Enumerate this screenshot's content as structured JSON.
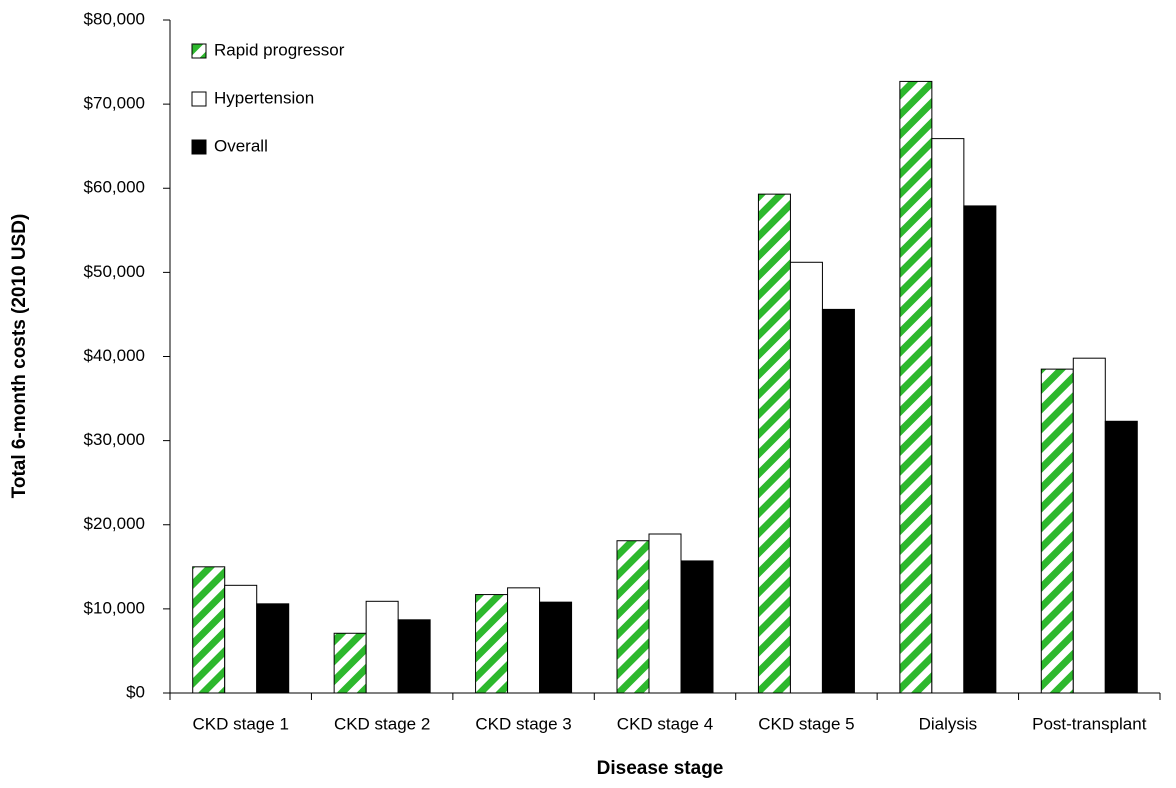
{
  "chart_data": {
    "type": "bar",
    "x_label": "Disease stage",
    "y_label": "Total 6-month costs (2010 USD)",
    "categories": [
      "CKD stage 1",
      "CKD stage 2",
      "CKD stage 3",
      "CKD stage 4",
      "CKD stage 5",
      "Dialysis",
      "Post-transplant"
    ],
    "series": [
      {
        "name": "Rapid progressor",
        "color": "#2db82d",
        "hatch": true,
        "values": [
          15000,
          7100,
          11700,
          18100,
          59300,
          72700,
          38500
        ]
      },
      {
        "name": "Hypertension",
        "color": "#ffffff",
        "values": [
          12800,
          10900,
          12500,
          18900,
          51200,
          65900,
          39800
        ]
      },
      {
        "name": "Overall",
        "color": "#000000",
        "values": [
          10600,
          8700,
          10800,
          15700,
          45600,
          57900,
          32300
        ]
      }
    ],
    "ylim": [
      0,
      80000
    ],
    "yticks": [
      {
        "value": 0,
        "label": "$0"
      },
      {
        "value": 10000,
        "label": "$10,000"
      },
      {
        "value": 20000,
        "label": "$20,000"
      },
      {
        "value": 30000,
        "label": "$30,000"
      },
      {
        "value": 40000,
        "label": "$40,000"
      },
      {
        "value": 50000,
        "label": "$50,000"
      },
      {
        "value": 60000,
        "label": "$60,000"
      },
      {
        "value": 70000,
        "label": "$70,000"
      },
      {
        "value": 80000,
        "label": "$80,000"
      }
    ],
    "legend": "top-left"
  }
}
